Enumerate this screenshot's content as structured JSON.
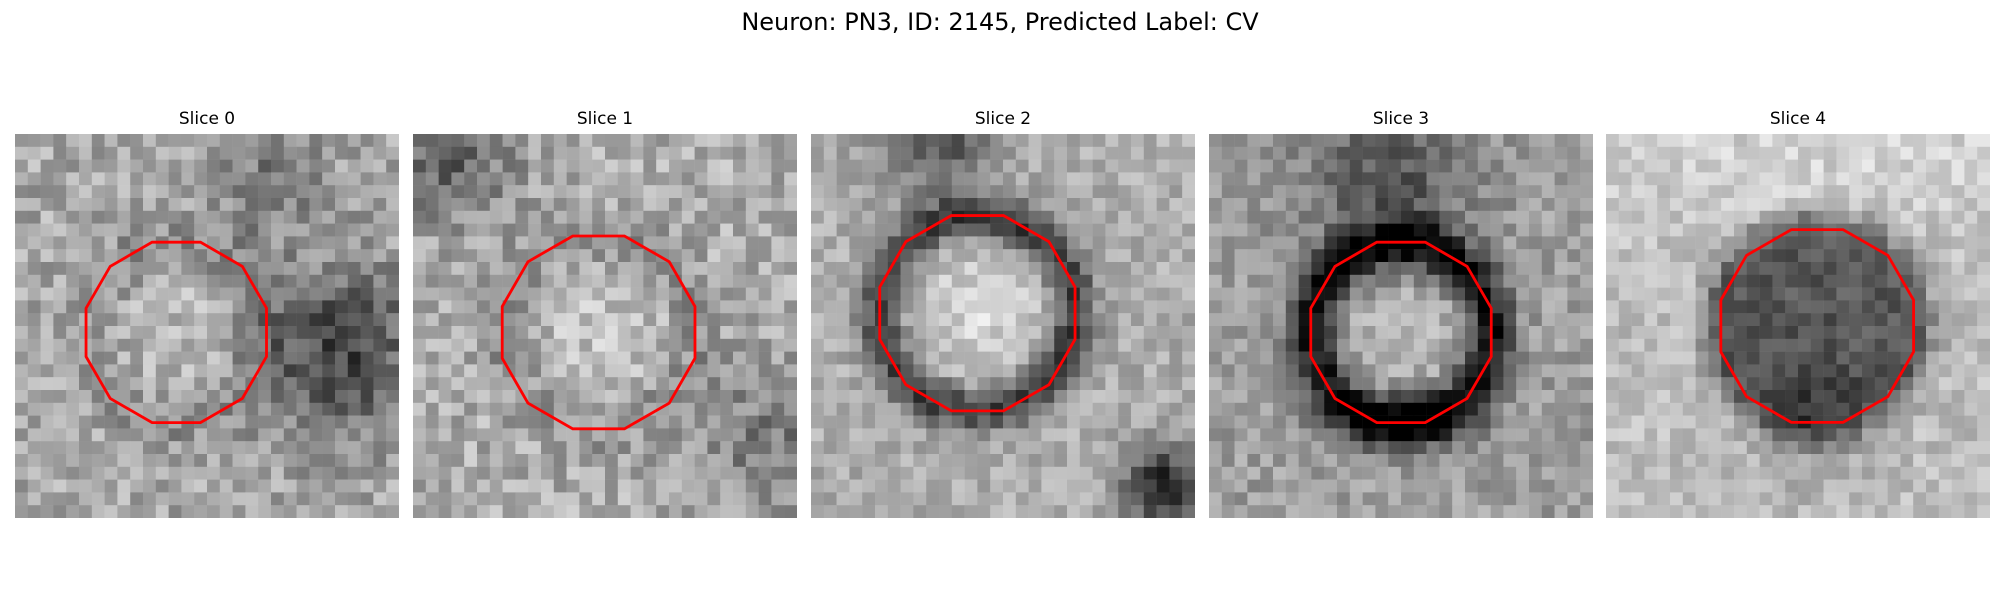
{
  "figure": {
    "title": "Neuron: PN3, ID: 2145, Predicted Label: CV"
  },
  "contour_color": "#ff0000",
  "colormap": "grayscale",
  "slices": [
    {
      "title": "Slice 0",
      "appearance": "bright interior, blurry boundary, dark region on right"
    },
    {
      "title": "Slice 1",
      "appearance": "bright interior, faint rim, dark top-left"
    },
    {
      "title": "Slice 2",
      "appearance": "bright center with clear dark ring"
    },
    {
      "title": "Slice 3",
      "appearance": "bright center with strong dark ring, thickest at bottom"
    },
    {
      "title": "Slice 4",
      "appearance": "dark filled blob on bright background"
    }
  ]
}
